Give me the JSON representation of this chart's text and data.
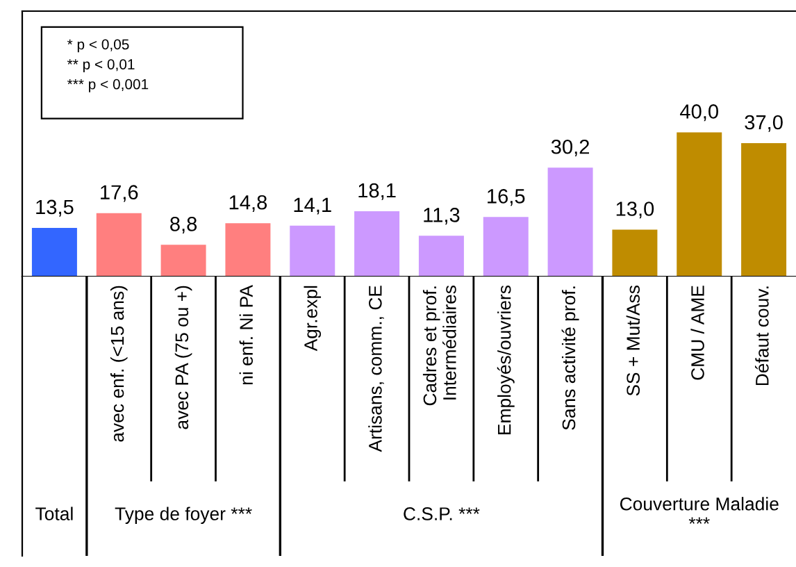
{
  "chart_data": {
    "type": "bar",
    "categories": [
      null,
      "avec enf. (<15 ans)",
      "avec PA (75 ou +)",
      "ni enf. Ni PA",
      "Agr.expl",
      "Artisans, comm., CE",
      "Cadres et prof.\nIntermédiaires",
      "Employés/ouvriers",
      "Sans activité prof.",
      "SS + Mut/Ass",
      "CMU / AME",
      "Défaut couv."
    ],
    "values": [
      13.5,
      17.6,
      8.8,
      14.8,
      14.1,
      18.1,
      11.3,
      16.5,
      30.2,
      13.0,
      40.0,
      37.0
    ],
    "value_labels": [
      "13,5",
      "17,6",
      "8,8",
      "14,8",
      "14,1",
      "18,1",
      "11,3",
      "16,5",
      "30,2",
      "13,0",
      "40,0",
      "37,0"
    ],
    "colors": [
      "#3366ff",
      "#ff7f7f",
      "#ff7f7f",
      "#ff7f7f",
      "#cc99ff",
      "#cc99ff",
      "#cc99ff",
      "#cc99ff",
      "#cc99ff",
      "#bf8c00",
      "#bf8c00",
      "#bf8c00"
    ],
    "annotations": [
      "* p < 0,05",
      "** p < 0,01",
      "*** p < 0,001",
      "Total",
      "Type de foyer ***",
      "C.S.P. ***",
      "Couverture Maladie\n***"
    ],
    "data_labels": false
  }
}
